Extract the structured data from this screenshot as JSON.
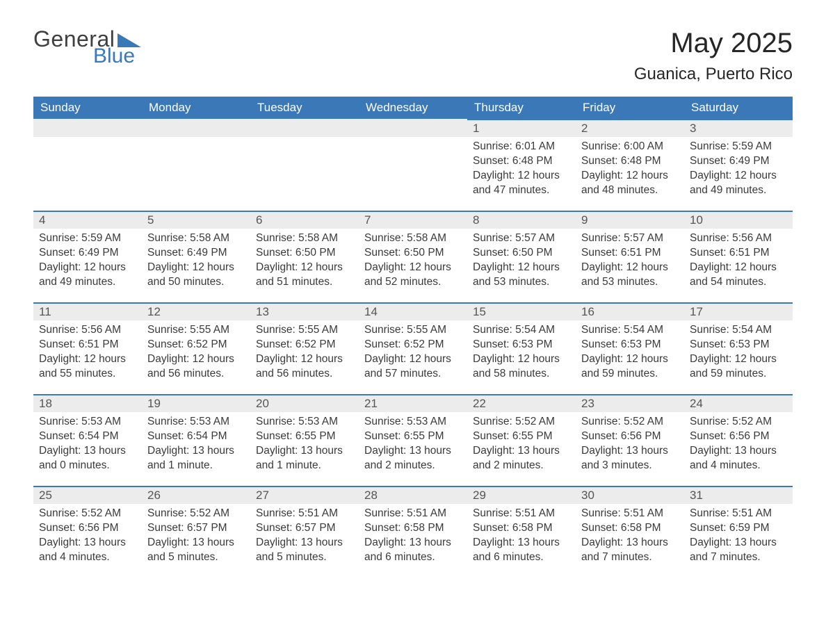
{
  "brand": {
    "word1": "General",
    "word2": "Blue",
    "triangle_color": "#3a78b8",
    "text_color_main": "#3f3f3f",
    "text_color_accent": "#3a78b8"
  },
  "title": {
    "month": "May 2025",
    "location": "Guanica, Puerto Rico"
  },
  "styling": {
    "header_bg": "#3a78b8",
    "header_text": "#ffffff",
    "daynum_bg": "#ececec",
    "daynum_text": "#555555",
    "cell_border_top": "#3a78b8",
    "body_text": "#3a3a3a",
    "page_bg": "#ffffff",
    "font_family": "Segoe UI, Arial, Helvetica, sans-serif",
    "month_title_fontsize": 40,
    "location_fontsize": 24,
    "weekday_fontsize": 17,
    "daynum_fontsize": 17,
    "body_fontsize": 15.5
  },
  "weekdays": [
    "Sunday",
    "Monday",
    "Tuesday",
    "Wednesday",
    "Thursday",
    "Friday",
    "Saturday"
  ],
  "calendar": {
    "blank_leading_cells": 4,
    "days": [
      {
        "n": "1",
        "sunrise": "Sunrise: 6:01 AM",
        "sunset": "Sunset: 6:48 PM",
        "daylight": "Daylight: 12 hours and 47 minutes."
      },
      {
        "n": "2",
        "sunrise": "Sunrise: 6:00 AM",
        "sunset": "Sunset: 6:48 PM",
        "daylight": "Daylight: 12 hours and 48 minutes."
      },
      {
        "n": "3",
        "sunrise": "Sunrise: 5:59 AM",
        "sunset": "Sunset: 6:49 PM",
        "daylight": "Daylight: 12 hours and 49 minutes."
      },
      {
        "n": "4",
        "sunrise": "Sunrise: 5:59 AM",
        "sunset": "Sunset: 6:49 PM",
        "daylight": "Daylight: 12 hours and 49 minutes."
      },
      {
        "n": "5",
        "sunrise": "Sunrise: 5:58 AM",
        "sunset": "Sunset: 6:49 PM",
        "daylight": "Daylight: 12 hours and 50 minutes."
      },
      {
        "n": "6",
        "sunrise": "Sunrise: 5:58 AM",
        "sunset": "Sunset: 6:50 PM",
        "daylight": "Daylight: 12 hours and 51 minutes."
      },
      {
        "n": "7",
        "sunrise": "Sunrise: 5:58 AM",
        "sunset": "Sunset: 6:50 PM",
        "daylight": "Daylight: 12 hours and 52 minutes."
      },
      {
        "n": "8",
        "sunrise": "Sunrise: 5:57 AM",
        "sunset": "Sunset: 6:50 PM",
        "daylight": "Daylight: 12 hours and 53 minutes."
      },
      {
        "n": "9",
        "sunrise": "Sunrise: 5:57 AM",
        "sunset": "Sunset: 6:51 PM",
        "daylight": "Daylight: 12 hours and 53 minutes."
      },
      {
        "n": "10",
        "sunrise": "Sunrise: 5:56 AM",
        "sunset": "Sunset: 6:51 PM",
        "daylight": "Daylight: 12 hours and 54 minutes."
      },
      {
        "n": "11",
        "sunrise": "Sunrise: 5:56 AM",
        "sunset": "Sunset: 6:51 PM",
        "daylight": "Daylight: 12 hours and 55 minutes."
      },
      {
        "n": "12",
        "sunrise": "Sunrise: 5:55 AM",
        "sunset": "Sunset: 6:52 PM",
        "daylight": "Daylight: 12 hours and 56 minutes."
      },
      {
        "n": "13",
        "sunrise": "Sunrise: 5:55 AM",
        "sunset": "Sunset: 6:52 PM",
        "daylight": "Daylight: 12 hours and 56 minutes."
      },
      {
        "n": "14",
        "sunrise": "Sunrise: 5:55 AM",
        "sunset": "Sunset: 6:52 PM",
        "daylight": "Daylight: 12 hours and 57 minutes."
      },
      {
        "n": "15",
        "sunrise": "Sunrise: 5:54 AM",
        "sunset": "Sunset: 6:53 PM",
        "daylight": "Daylight: 12 hours and 58 minutes."
      },
      {
        "n": "16",
        "sunrise": "Sunrise: 5:54 AM",
        "sunset": "Sunset: 6:53 PM",
        "daylight": "Daylight: 12 hours and 59 minutes."
      },
      {
        "n": "17",
        "sunrise": "Sunrise: 5:54 AM",
        "sunset": "Sunset: 6:53 PM",
        "daylight": "Daylight: 12 hours and 59 minutes."
      },
      {
        "n": "18",
        "sunrise": "Sunrise: 5:53 AM",
        "sunset": "Sunset: 6:54 PM",
        "daylight": "Daylight: 13 hours and 0 minutes."
      },
      {
        "n": "19",
        "sunrise": "Sunrise: 5:53 AM",
        "sunset": "Sunset: 6:54 PM",
        "daylight": "Daylight: 13 hours and 1 minute."
      },
      {
        "n": "20",
        "sunrise": "Sunrise: 5:53 AM",
        "sunset": "Sunset: 6:55 PM",
        "daylight": "Daylight: 13 hours and 1 minute."
      },
      {
        "n": "21",
        "sunrise": "Sunrise: 5:53 AM",
        "sunset": "Sunset: 6:55 PM",
        "daylight": "Daylight: 13 hours and 2 minutes."
      },
      {
        "n": "22",
        "sunrise": "Sunrise: 5:52 AM",
        "sunset": "Sunset: 6:55 PM",
        "daylight": "Daylight: 13 hours and 2 minutes."
      },
      {
        "n": "23",
        "sunrise": "Sunrise: 5:52 AM",
        "sunset": "Sunset: 6:56 PM",
        "daylight": "Daylight: 13 hours and 3 minutes."
      },
      {
        "n": "24",
        "sunrise": "Sunrise: 5:52 AM",
        "sunset": "Sunset: 6:56 PM",
        "daylight": "Daylight: 13 hours and 4 minutes."
      },
      {
        "n": "25",
        "sunrise": "Sunrise: 5:52 AM",
        "sunset": "Sunset: 6:56 PM",
        "daylight": "Daylight: 13 hours and 4 minutes."
      },
      {
        "n": "26",
        "sunrise": "Sunrise: 5:52 AM",
        "sunset": "Sunset: 6:57 PM",
        "daylight": "Daylight: 13 hours and 5 minutes."
      },
      {
        "n": "27",
        "sunrise": "Sunrise: 5:51 AM",
        "sunset": "Sunset: 6:57 PM",
        "daylight": "Daylight: 13 hours and 5 minutes."
      },
      {
        "n": "28",
        "sunrise": "Sunrise: 5:51 AM",
        "sunset": "Sunset: 6:58 PM",
        "daylight": "Daylight: 13 hours and 6 minutes."
      },
      {
        "n": "29",
        "sunrise": "Sunrise: 5:51 AM",
        "sunset": "Sunset: 6:58 PM",
        "daylight": "Daylight: 13 hours and 6 minutes."
      },
      {
        "n": "30",
        "sunrise": "Sunrise: 5:51 AM",
        "sunset": "Sunset: 6:58 PM",
        "daylight": "Daylight: 13 hours and 7 minutes."
      },
      {
        "n": "31",
        "sunrise": "Sunrise: 5:51 AM",
        "sunset": "Sunset: 6:59 PM",
        "daylight": "Daylight: 13 hours and 7 minutes."
      }
    ]
  }
}
